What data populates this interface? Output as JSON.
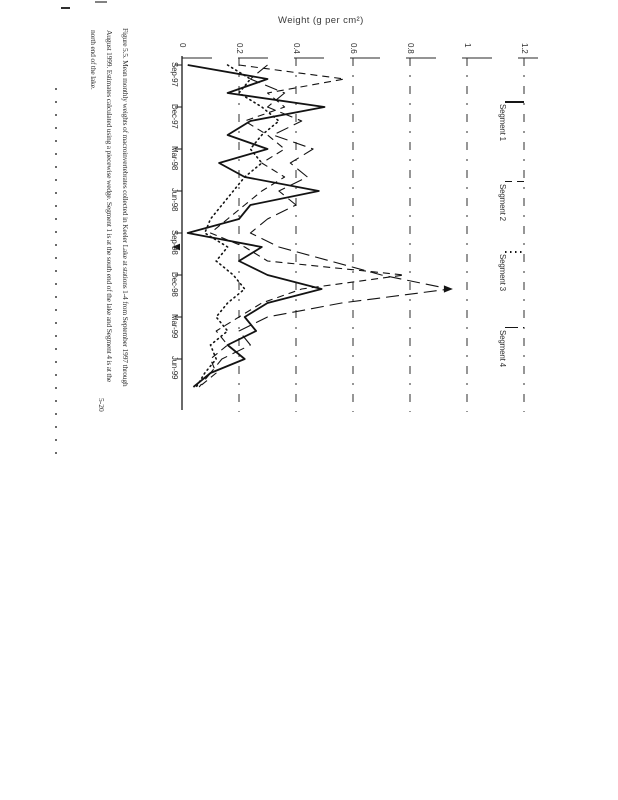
{
  "page": {
    "title": "Weight (g per cm²)",
    "page_number": "5-20",
    "caption_lines": [
      "Figure 5.5.  Mean monthly weights of macroinvertebrates collected in Keeler Lake at stations 1-4 from September 1997 through",
      "August 1999.  Estimates calculated using a piecewise wedge.  Segment 1 is at the south end of the lake and Segment 4 is at the",
      "north end of the lake."
    ]
  },
  "chart_data": {
    "type": "line",
    "title": "Weight (g per cm²)",
    "note": "figure printed rotated 90° on the page; date axis runs down the left side, weight axis across the top; monthly points Sep-97 through Aug-99 estimated from gridlines",
    "date_tick_labels": [
      "Sep-97",
      "Dec-97",
      "Mar-98",
      "Jun-98",
      "Sep-98",
      "Dec-98",
      "Mar-99",
      "Jun-99"
    ],
    "value_axis": {
      "label": "Weight (g per cm²)",
      "tick_labels": [
        "0",
        "0.2",
        "0.4",
        "0.6",
        "0.8",
        "1",
        "1.2"
      ],
      "ticks": [
        0,
        0.2,
        0.4,
        0.6,
        0.8,
        1,
        1.2
      ],
      "range": [
        0,
        1.2
      ],
      "grid": true
    },
    "legend_position": "right column of rotated figure",
    "series": [
      {
        "name": "Segment 1",
        "style": "solid",
        "values": [
          0.02,
          0.3,
          0.16,
          0.5,
          0.24,
          0.16,
          0.3,
          0.13,
          0.22,
          0.48,
          0.24,
          0.2,
          0.02,
          0.28,
          0.2,
          0.3,
          0.49,
          0.3,
          0.22,
          0.26,
          0.16,
          0.22,
          0.1,
          0.04
        ]
      },
      {
        "name": "Segment 2",
        "style": "dashed",
        "values": [
          0.2,
          0.57,
          0.3,
          0.36,
          0.22,
          0.3,
          0.36,
          0.28,
          0.36,
          0.28,
          0.22,
          0.16,
          0.1,
          0.22,
          0.3,
          0.78,
          0.42,
          0.28,
          0.2,
          0.12,
          0.16,
          0.1,
          0.12,
          0.06
        ]
      },
      {
        "name": "Segment 3",
        "style": "dotted",
        "values": [
          0.16,
          0.24,
          0.2,
          0.28,
          0.34,
          0.28,
          0.24,
          0.28,
          0.22,
          0.18,
          0.14,
          0.1,
          0.08,
          0.16,
          0.12,
          0.18,
          0.22,
          0.16,
          0.12,
          0.16,
          0.1,
          0.12,
          0.08,
          0.05
        ]
      },
      {
        "name": "Segment 4",
        "style": "longdash",
        "values": [
          0.3,
          0.24,
          0.36,
          0.3,
          0.42,
          0.32,
          0.46,
          0.38,
          0.44,
          0.34,
          0.4,
          0.3,
          0.24,
          0.34,
          0.52,
          0.7,
          0.94,
          0.56,
          0.3,
          0.2,
          0.24,
          0.14,
          0.1,
          0.06
        ]
      }
    ],
    "markers": [
      {
        "desc": "right-pointing arrowhead at Segment 4 winter peak (~0.94, Jan-99)",
        "month_index": 16,
        "value": 0.94,
        "dir": "right"
      },
      {
        "desc": "small left-pointing arrowhead near axis (scan mark)",
        "month_index": 13,
        "value": 0.0,
        "dir": "left"
      }
    ],
    "ink_color": "#131313"
  }
}
